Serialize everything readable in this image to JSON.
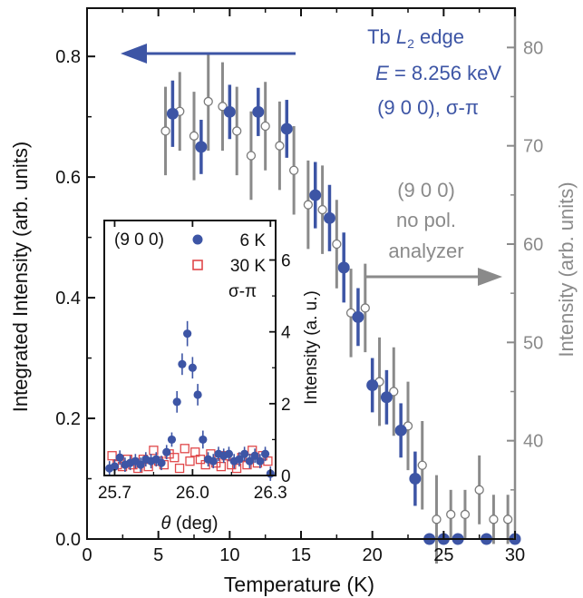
{
  "chart_data": [
    {
      "type": "scatter",
      "xlabel": "Temperature (K)",
      "ylabel_left": "Integrated Intensity (arb. units)",
      "ylabel_right": "Intensity (arb. units)",
      "xlim": [
        0,
        30
      ],
      "ylim_left": [
        0,
        0.88
      ],
      "ylim_right": [
        30,
        84
      ],
      "xticks": [
        "0",
        "5",
        "10",
        "15",
        "20",
        "25",
        "30"
      ],
      "yticks_left": [
        "0.0",
        "0.2",
        "0.4",
        "0.6",
        "0.8"
      ],
      "yticks_right": [
        "40",
        "50",
        "60",
        "70",
        "80"
      ],
      "colors": {
        "blue": "#3d55a5",
        "gray": "#8a8a8a"
      },
      "annotations": {
        "left_line1_prefix": "Tb ",
        "left_line1_italic": "L",
        "left_line1_sub": "2",
        "left_line1_suffix": " edge",
        "left_line2_italic": "E",
        "left_line2_rest": " = 8.256 keV",
        "left_line3": "(9 0 0), σ-π",
        "right_line1": "(9 0 0)",
        "right_line2": "no pol.",
        "right_line3": "analyzer"
      },
      "series": [
        {
          "axis": "left",
          "marker": "filled-circle",
          "color": "#3d55a5",
          "x": [
            6.0,
            8.0,
            10.0,
            12.0,
            14.0,
            16.0,
            17.0,
            18.0,
            19.0,
            20.0,
            21.0,
            22.0,
            23.0,
            24.0,
            25.0,
            26.0,
            28.0,
            30.0
          ],
          "y": [
            0.705,
            0.65,
            0.708,
            0.708,
            0.68,
            0.57,
            0.532,
            0.45,
            0.368,
            0.255,
            0.235,
            0.18,
            0.1,
            0.0,
            0.0,
            0.0,
            0.0,
            0.0
          ],
          "err": [
            0.055,
            0.045,
            0.045,
            0.04,
            0.048,
            0.055,
            0.055,
            0.058,
            0.048,
            0.045,
            0.045,
            0.045,
            0.045,
            0.0,
            0.0,
            0.0,
            0.0,
            0.0
          ]
        },
        {
          "axis": "right",
          "marker": "open-circle",
          "color": "#8a8a8a",
          "x": [
            5.5,
            6.5,
            7.5,
            8.5,
            9.5,
            10.5,
            11.5,
            12.5,
            13.5,
            14.5,
            15.5,
            16.5,
            17.5,
            18.5,
            19.5,
            20.5,
            21.5,
            22.5,
            23.5,
            24.5,
            25.5,
            26.5,
            27.5,
            28.5,
            29.5
          ],
          "y": [
            71.5,
            73.5,
            71.0,
            74.5,
            74.0,
            71.5,
            69.0,
            72.0,
            70.0,
            67.5,
            64.0,
            63.5,
            60.0,
            53.0,
            53.5,
            46.0,
            45.0,
            41.5,
            37.5,
            32.0,
            32.5,
            32.5,
            35.0,
            32.0,
            32.0
          ],
          "err": [
            4.5,
            4.0,
            4.5,
            5.0,
            4.5,
            4.5,
            4.5,
            4.5,
            4.5,
            4.5,
            4.5,
            4.5,
            4.5,
            4.5,
            4.5,
            4.5,
            4.5,
            4.5,
            4.5,
            4.5,
            2.5,
            2.5,
            3.5,
            2.5,
            2.5
          ]
        }
      ]
    },
    {
      "type": "scatter",
      "xlabel_italic": "θ",
      "xlabel_rest": " (deg)",
      "ylabel": "Intensity (a. u.)",
      "xlim": [
        25.66,
        26.32
      ],
      "ylim": [
        0,
        7.1
      ],
      "xticks": [
        "25.7",
        "26.0",
        "26.3"
      ],
      "yticks": [
        "0",
        "2",
        "4",
        "6"
      ],
      "legend_title": "(9 0 0)",
      "legend_location": "top",
      "legend_extra": "σ-π",
      "series": [
        {
          "name": "6 K",
          "marker": "filled-circle",
          "color": "#3d55a5",
          "x": [
            25.68,
            25.7,
            25.72,
            25.74,
            25.76,
            25.78,
            25.8,
            25.82,
            25.84,
            25.86,
            25.88,
            25.9,
            25.92,
            25.94,
            25.96,
            25.98,
            26.0,
            26.02,
            26.04,
            26.06,
            26.08,
            26.1,
            26.12,
            26.14,
            26.16,
            26.18,
            26.2,
            26.22,
            26.24,
            26.26,
            26.28,
            26.3
          ],
          "y": [
            0.2,
            0.25,
            0.5,
            0.3,
            0.35,
            0.4,
            0.3,
            0.45,
            0.4,
            0.45,
            0.35,
            0.65,
            1.0,
            2.05,
            3.1,
            3.95,
            3.0,
            2.25,
            1.0,
            0.45,
            0.4,
            0.6,
            0.55,
            0.6,
            0.4,
            0.45,
            0.6,
            0.4,
            0.55,
            0.4,
            0.6,
            0.05
          ],
          "err": [
            0.2,
            0.2,
            0.2,
            0.2,
            0.2,
            0.2,
            0.2,
            0.2,
            0.2,
            0.2,
            0.2,
            0.2,
            0.2,
            0.3,
            0.3,
            0.35,
            0.3,
            0.3,
            0.25,
            0.2,
            0.2,
            0.2,
            0.2,
            0.2,
            0.2,
            0.2,
            0.2,
            0.2,
            0.2,
            0.2,
            0.2,
            0.2
          ]
        },
        {
          "name": "30 K",
          "marker": "open-square",
          "color": "#e0484a",
          "x": [
            25.69,
            25.71,
            25.73,
            25.75,
            25.77,
            25.79,
            25.81,
            25.83,
            25.85,
            25.87,
            25.89,
            25.91,
            25.93,
            25.95,
            25.97,
            25.99,
            26.01,
            26.03,
            26.05,
            26.07,
            26.09,
            26.11,
            26.13,
            26.15,
            26.17,
            26.19,
            26.21,
            26.23,
            26.25,
            26.27,
            26.29
          ],
          "y": [
            0.55,
            0.3,
            0.25,
            0.45,
            0.3,
            0.2,
            0.45,
            0.25,
            0.7,
            0.4,
            0.3,
            0.6,
            0.5,
            0.2,
            0.75,
            0.4,
            0.65,
            0.45,
            0.3,
            0.6,
            0.35,
            0.25,
            0.55,
            0.3,
            0.2,
            0.5,
            0.3,
            0.7,
            0.35,
            0.55,
            0.4
          ]
        }
      ]
    }
  ]
}
